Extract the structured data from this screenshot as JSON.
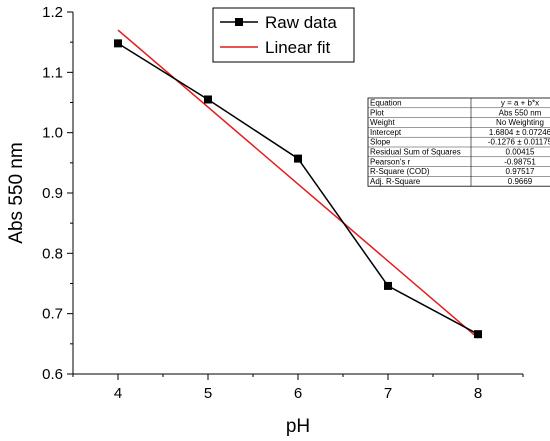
{
  "chart_data": {
    "type": "line",
    "xlabel": "pH",
    "ylabel": "Abs  550 nm",
    "xlim": [
      3.5,
      8.5
    ],
    "ylim": [
      0.6,
      1.2
    ],
    "x_ticks": [
      "4",
      "5",
      "6",
      "7",
      "8"
    ],
    "y_ticks": [
      "0.6",
      "0.7",
      "0.8",
      "0.9",
      "1.0",
      "1.1",
      "1.2"
    ],
    "grid": false,
    "legend_position": "top-center",
    "series": [
      {
        "name": "Raw data",
        "color": "#000000",
        "marker": "square",
        "x": [
          4,
          5,
          6,
          7,
          8
        ],
        "y": [
          1.148,
          1.055,
          0.957,
          0.746,
          0.666
        ]
      },
      {
        "name": "Linear fit",
        "color": "#e41a1c",
        "marker": "none",
        "x": [
          4,
          8
        ],
        "y": [
          1.17,
          0.6596
        ]
      }
    ],
    "stats_table": [
      [
        "Equation",
        "y = a + b*x"
      ],
      [
        "Plot",
        "Abs  550 nm"
      ],
      [
        "Weight",
        "No Weighting"
      ],
      [
        "Intercept",
        "1.6804 ± 0.07246"
      ],
      [
        "Slope",
        "-0.1276 ± 0.01175"
      ],
      [
        "Residual Sum of Squares",
        "0.00415"
      ],
      [
        "Pearson's r",
        "-0.98751"
      ],
      [
        "R-Square (COD)",
        "0.97517"
      ],
      [
        "Adj. R-Square",
        "0.9669"
      ]
    ]
  }
}
